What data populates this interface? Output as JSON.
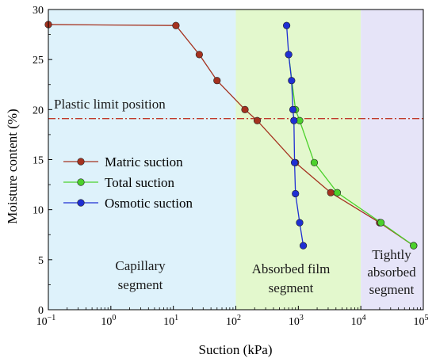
{
  "chart_data": {
    "type": "line",
    "xlabel": "Suction (kPa)",
    "ylabel": "Moisture content (%)",
    "xscale": "log",
    "xlim": [
      0.1,
      100000
    ],
    "ylim": [
      0,
      30
    ],
    "x_ticks": [
      0.1,
      1,
      10,
      100,
      1000,
      10000,
      100000
    ],
    "x_tick_labels": [
      {
        "base": "10",
        "exp": "−1"
      },
      {
        "base": "10",
        "exp": "0"
      },
      {
        "base": "10",
        "exp": "1"
      },
      {
        "base": "10",
        "exp": "2"
      },
      {
        "base": "10",
        "exp": "3"
      },
      {
        "base": "10",
        "exp": "4"
      },
      {
        "base": "10",
        "exp": "5"
      }
    ],
    "y_ticks": [
      0,
      5,
      10,
      15,
      20,
      25,
      30
    ],
    "y_tick_labels": [
      "0",
      "5",
      "10",
      "15",
      "20",
      "25",
      "30"
    ],
    "grid": false,
    "legend_position": "middle-left",
    "regions": [
      {
        "x0": 0.1,
        "x1": 100,
        "color": "#def2fb",
        "label_lines": [
          "Capillary",
          "segment"
        ]
      },
      {
        "x0": 100,
        "x1": 10000,
        "color": "#e3f8cd",
        "label_lines": [
          "Absorbed film",
          "segment"
        ]
      },
      {
        "x0": 10000,
        "x1": 100000,
        "color": "#e6e4f8",
        "label_lines": [
          "Tightly",
          "absorbed",
          "segment"
        ]
      }
    ],
    "reference_line": {
      "y": 19.1,
      "label": "Plastic limit position",
      "color": "#c0392b"
    },
    "series": [
      {
        "name": "Matric suction",
        "color": "#a5321f",
        "x": [
          0.1,
          11,
          26,
          50,
          140,
          220,
          900,
          3300,
          20000,
          70000
        ],
        "y": [
          28.5,
          28.4,
          25.5,
          22.9,
          20.0,
          18.9,
          14.7,
          11.7,
          8.7,
          6.4
        ]
      },
      {
        "name": "Total suction",
        "color": "#4cd12c",
        "x": [
          700,
          900,
          1050,
          1800,
          4200,
          21000,
          70000
        ],
        "y": [
          25.5,
          20.0,
          18.9,
          14.7,
          11.7,
          8.7,
          6.4
        ]
      },
      {
        "name": "Osmotic suction",
        "color": "#1f2fd3",
        "x": [
          650,
          700,
          780,
          820,
          850,
          870,
          900,
          1050,
          1200
        ],
        "y": [
          28.4,
          25.5,
          22.9,
          20.0,
          18.9,
          14.7,
          11.6,
          8.7,
          6.4
        ]
      }
    ]
  }
}
